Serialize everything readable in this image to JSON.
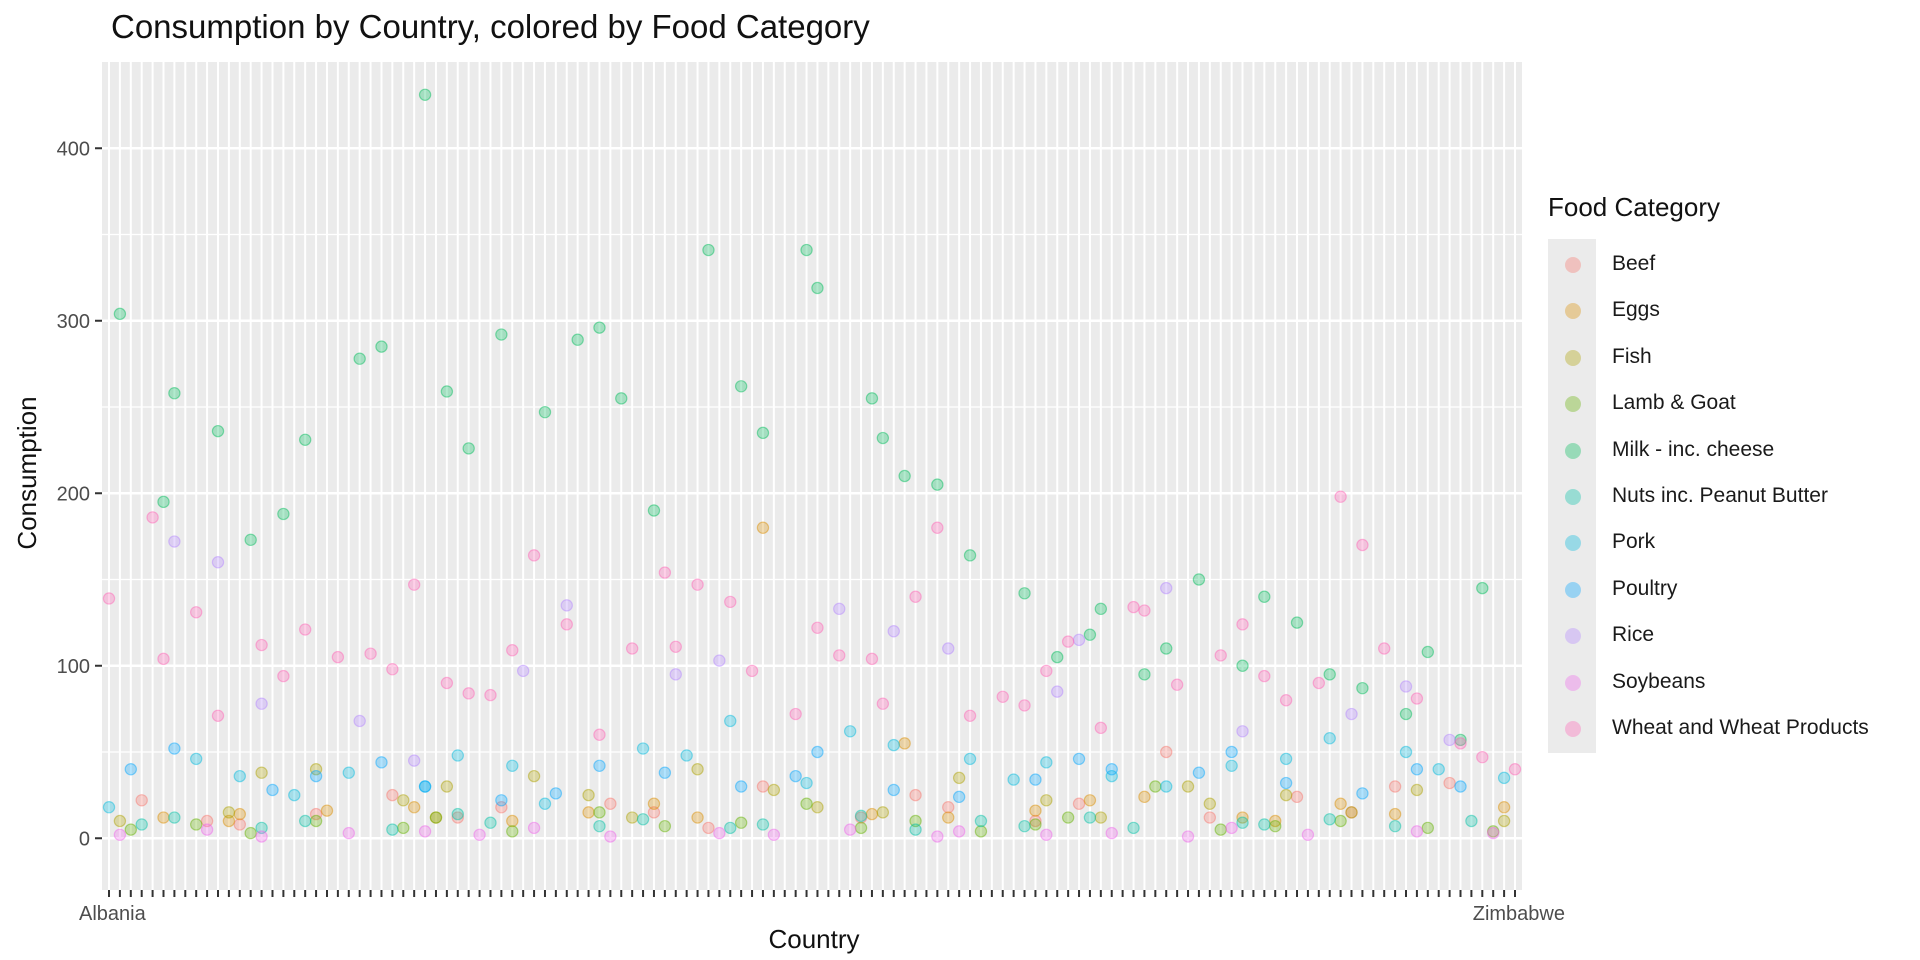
{
  "chart_data": {
    "type": "scatter",
    "title": "Consumption by Country, colored by Food Category",
    "xlabel": "Country",
    "ylabel": "Consumption",
    "ylim": [
      -30,
      450
    ],
    "y_ticks": [
      0,
      100,
      200,
      300,
      400
    ],
    "x_categories_count": 130,
    "x_tick_labels_visible": [
      "Albania",
      "Zimbabwe"
    ],
    "grid": true,
    "legend_position": "right",
    "legend_title": "Food Category",
    "series": [
      {
        "name": "Beef",
        "color": "#F8766D",
        "values": [
          22,
          10,
          8,
          14,
          25,
          12,
          18,
          20,
          15,
          6,
          30,
          12,
          25,
          18,
          10,
          20,
          50,
          12,
          24,
          15,
          30,
          32
        ]
      },
      {
        "name": "Eggs",
        "color": "#DB8E00",
        "values": [
          12,
          10,
          14,
          16,
          18,
          12,
          10,
          15,
          20,
          12,
          180,
          14,
          55,
          12,
          16,
          22,
          24,
          12,
          10,
          20,
          14,
          18
        ]
      },
      {
        "name": "Fish",
        "color": "#AEA200",
        "values": [
          10,
          15,
          38,
          40,
          22,
          30,
          36,
          25,
          12,
          40,
          28,
          18,
          15,
          35,
          22,
          12,
          30,
          20,
          25,
          15,
          28,
          10
        ]
      },
      {
        "name": "Lamb & Goat",
        "color": "#64B200",
        "values": [
          5,
          8,
          3,
          10,
          6,
          12,
          4,
          15,
          7,
          9,
          20,
          6,
          10,
          4,
          8,
          12,
          30,
          5,
          7,
          10,
          6,
          4
        ]
      },
      {
        "name": "Milk - inc. cheese",
        "color": "#00BD5C",
        "values": [
          304,
          195,
          258,
          236,
          173,
          188,
          231,
          278,
          285,
          431,
          259,
          226,
          292,
          247,
          289,
          296,
          255,
          190,
          341,
          262,
          235,
          341,
          319,
          255,
          232,
          210,
          205,
          164,
          142,
          105,
          118,
          133,
          95,
          110,
          150,
          100,
          140,
          125,
          95,
          87,
          72,
          108,
          57,
          145
        ]
      },
      {
        "name": "Nuts inc. Peanut Butter",
        "color": "#00C1A7",
        "values": [
          8,
          12,
          6,
          10,
          5,
          14,
          9,
          7,
          11,
          6,
          8,
          13,
          5,
          10,
          7,
          12,
          6,
          9,
          8,
          11,
          7,
          10
        ]
      },
      {
        "name": "Pork",
        "color": "#00BADE",
        "values": [
          18,
          46,
          36,
          25,
          38,
          30,
          48,
          42,
          20,
          52,
          48,
          68,
          32,
          62,
          54,
          46,
          34,
          44,
          36,
          30,
          42,
          46,
          58,
          50,
          40,
          35
        ]
      },
      {
        "name": "Poultry",
        "color": "#00A6FF",
        "values": [
          40,
          52,
          28,
          36,
          44,
          30,
          22,
          26,
          42,
          38,
          30,
          36,
          50,
          28,
          24,
          34,
          46,
          40,
          38,
          50,
          32,
          26,
          40,
          30
        ]
      },
      {
        "name": "Rice",
        "color": "#B385FF",
        "values": [
          172,
          160,
          78,
          68,
          45,
          97,
          135,
          95,
          103,
          133,
          120,
          110,
          85,
          115,
          145,
          62,
          72,
          88,
          57
        ]
      },
      {
        "name": "Soybeans",
        "color": "#EF67EB",
        "values": [
          2,
          5,
          1,
          3,
          4,
          2,
          6,
          1,
          3,
          2,
          5,
          1,
          4,
          2,
          3,
          1,
          6,
          2,
          4,
          3
        ]
      },
      {
        "name": "Wheat and Wheat Products",
        "color": "#FF63B6",
        "values": [
          139,
          186,
          104,
          131,
          71,
          112,
          94,
          121,
          105,
          107,
          98,
          147,
          90,
          84,
          83,
          109,
          164,
          124,
          60,
          110,
          154,
          111,
          147,
          137,
          97,
          72,
          122,
          106,
          104,
          78,
          140,
          180,
          71,
          82,
          77,
          97,
          114,
          64,
          134,
          132,
          89,
          106,
          124,
          94,
          80,
          90,
          198,
          170,
          110,
          81,
          55,
          47,
          40
        ]
      }
    ]
  }
}
